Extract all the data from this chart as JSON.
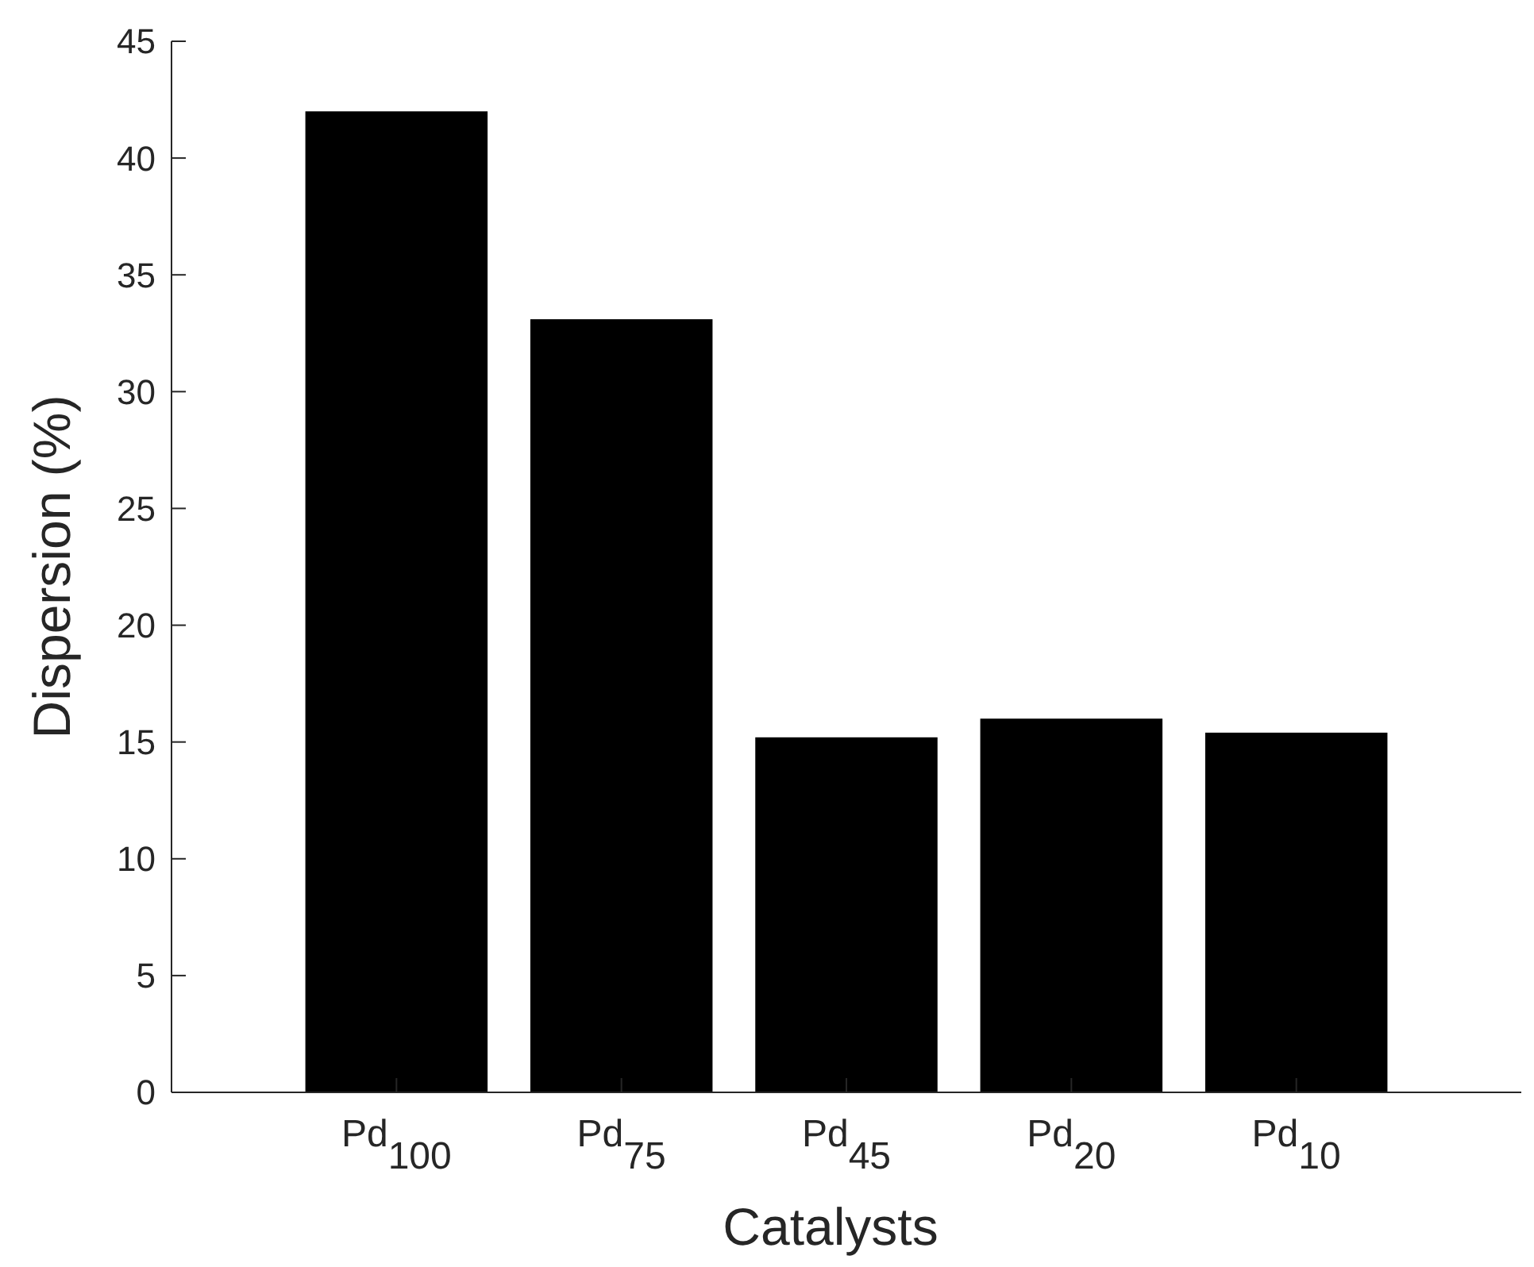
{
  "chart_data": {
    "type": "bar",
    "xlabel": "Catalysts",
    "ylabel": "Dispersion (%)",
    "categories": [
      "Pd$_{100}$",
      "Pd$_{75}$",
      "Pd$_{45}$",
      "Pd$_{20}$",
      "Pd$_{10}$"
    ],
    "values": [
      42,
      33.1,
      15.2,
      16,
      15.4
    ],
    "color": "#000000",
    "ylim": [
      0,
      45
    ],
    "yticks": [
      0,
      5,
      10,
      15,
      20,
      25,
      30,
      35,
      40,
      45
    ],
    "grid": false
  }
}
